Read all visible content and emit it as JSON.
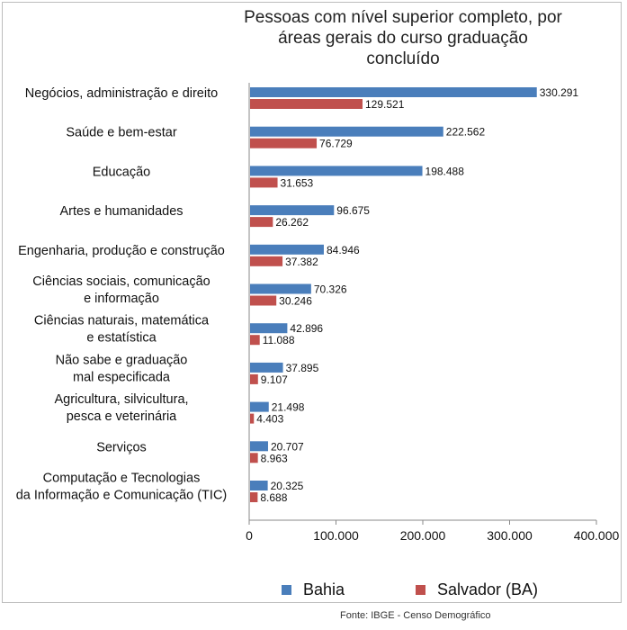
{
  "chart_data": {
    "type": "bar",
    "orientation": "horizontal",
    "title_lines": [
      "Pessoas com nível superior completo, por",
      "áreas gerais do curso graduação",
      "concluído"
    ],
    "categories": [
      [
        "Negócios, administração e direito"
      ],
      [
        "Saúde e bem-estar"
      ],
      [
        "Educação"
      ],
      [
        "Artes e humanidades"
      ],
      [
        "Engenharia, produção e construção"
      ],
      [
        "Ciências sociais, comunicação",
        "e informação"
      ],
      [
        "Ciências naturais, matemática",
        "e estatística"
      ],
      [
        "Não sabe e graduação",
        "mal especificada"
      ],
      [
        "Agricultura, silvicultura,",
        "pesca e veterinária"
      ],
      [
        "Serviços"
      ],
      [
        "Computação e Tecnologias",
        "da Informação e Comunicação (TIC)"
      ]
    ],
    "series": [
      {
        "name": "Bahia",
        "color": "#4a7ebb",
        "values": [
          330291,
          222562,
          198488,
          96675,
          84946,
          70326,
          42896,
          37895,
          21498,
          20707,
          20325
        ],
        "labels": [
          "330.291",
          "222.562",
          "198.488",
          "96.675",
          "84.946",
          "70.326",
          "42.896",
          "37.895",
          "21.498",
          "20.707",
          "20.325"
        ]
      },
      {
        "name": "Salvador (BA)",
        "color": "#c0504d",
        "values": [
          129521,
          76729,
          31653,
          26262,
          37382,
          30246,
          11088,
          9107,
          4403,
          8963,
          8688
        ],
        "labels": [
          "129.521",
          "76.729",
          "31.653",
          "26.262",
          "37.382",
          "30.246",
          "11.088",
          "9.107",
          "4.403",
          "8.963",
          "8.688"
        ]
      }
    ],
    "xlim": [
      0,
      400000
    ],
    "xticks": [
      0,
      100000,
      200000,
      300000,
      400000
    ],
    "xtick_labels": [
      "0",
      "100.000",
      "200.000",
      "300.000",
      "400.000"
    ],
    "grid": false,
    "legend_position": "bottom"
  },
  "source_text": "Fonte: IBGE - Censo Demográfico"
}
